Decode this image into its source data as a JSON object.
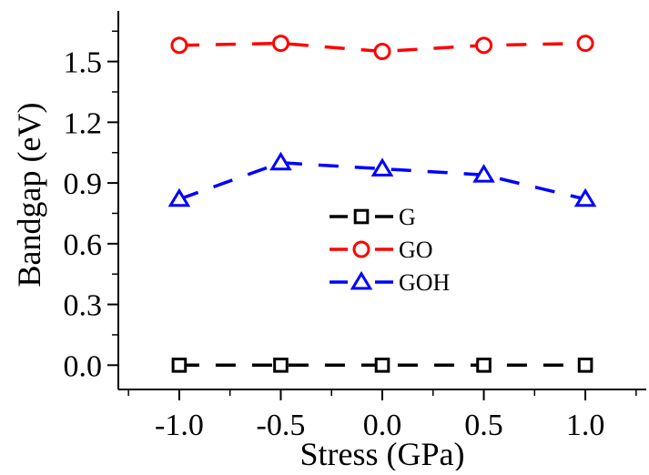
{
  "chart_data": {
    "type": "line",
    "xlabel": "Stress (GPa)",
    "ylabel": "Bandgap (eV)",
    "xlim": [
      -1.3,
      1.3
    ],
    "ylim": [
      -0.12,
      1.75
    ],
    "x": [
      -1.0,
      -0.5,
      0.0,
      0.5,
      1.0
    ],
    "xticks": [
      -1.0,
      -0.5,
      0.0,
      0.5,
      1.0
    ],
    "xtick_labels": [
      "-1.0",
      "-0.5",
      "0.0",
      "0.5",
      "1.0"
    ],
    "yticks": [
      0.0,
      0.3,
      0.6,
      0.9,
      1.2,
      1.5
    ],
    "ytick_labels": [
      "0.0",
      "0.3",
      "0.6",
      "0.9",
      "1.2",
      "1.5"
    ],
    "grid": false,
    "legend_position": "center",
    "series": [
      {
        "name": "G",
        "color": "#000000",
        "marker": "square",
        "values": [
          0.0,
          0.0,
          0.0,
          0.0,
          0.0
        ]
      },
      {
        "name": "GO",
        "color": "#ff0000",
        "marker": "circle",
        "values": [
          1.58,
          1.59,
          1.55,
          1.58,
          1.59
        ]
      },
      {
        "name": "GOH",
        "color": "#0000ff",
        "marker": "triangle",
        "values": [
          0.82,
          1.0,
          0.97,
          0.94,
          0.82
        ]
      }
    ]
  }
}
